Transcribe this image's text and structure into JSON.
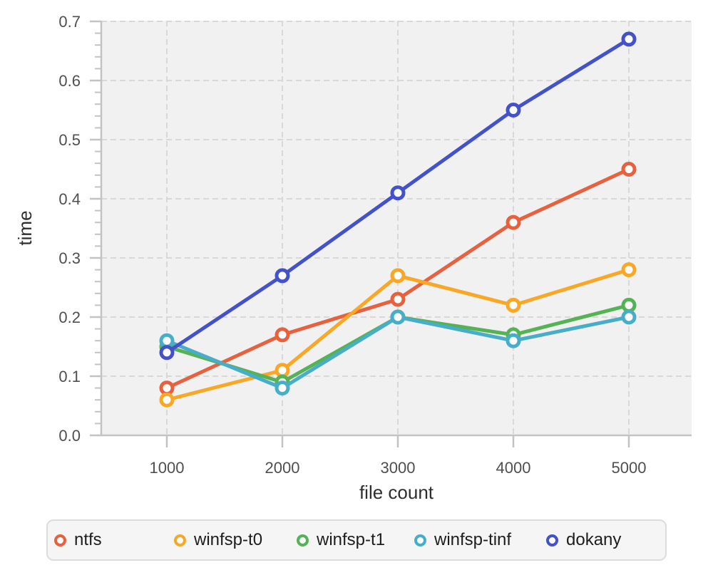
{
  "chart_data": {
    "type": "line",
    "title": "",
    "xlabel": "file count",
    "ylabel": "time",
    "x": [
      1000,
      2000,
      3000,
      4000,
      5000
    ],
    "xtick_labels": [
      "1000",
      "2000",
      "3000",
      "4000",
      "5000"
    ],
    "ytick_labels": [
      "0.0",
      "0.1",
      "0.2",
      "0.3",
      "0.4",
      "0.5",
      "0.6",
      "0.7"
    ],
    "yticks": [
      0.0,
      0.1,
      0.2,
      0.3,
      0.4,
      0.5,
      0.6,
      0.7
    ],
    "y_minor_step": 0.02,
    "xlim": [
      450,
      5550
    ],
    "ylim": [
      0,
      0.7
    ],
    "grid": "dashed",
    "marker": "open-circle",
    "legend_position": "bottom",
    "series": [
      {
        "name": "ntfs",
        "color": "#E7613E",
        "values": [
          0.08,
          0.17,
          0.23,
          0.36,
          0.45
        ]
      },
      {
        "name": "winfsp-t0",
        "color": "#F8A826",
        "values": [
          0.06,
          0.11,
          0.27,
          0.22,
          0.28
        ]
      },
      {
        "name": "winfsp-t1",
        "color": "#55B255",
        "values": [
          0.15,
          0.09,
          0.2,
          0.17,
          0.22
        ]
      },
      {
        "name": "winfsp-tinf",
        "color": "#47ADC9",
        "values": [
          0.16,
          0.08,
          0.2,
          0.16,
          0.2
        ]
      },
      {
        "name": "dokany",
        "color": "#4352C9",
        "values": [
          0.14,
          0.27,
          0.41,
          0.55,
          0.67
        ]
      }
    ],
    "styles": {
      "plot_bg": "#f1f1f1",
      "grid_color": "#d8d8d8",
      "axis_color": "#c3c3c3",
      "tick_label_color": "#4f4f4f",
      "axis_title_color": "#2e2e2e",
      "legend_bg": "#f5f5f5",
      "legend_border": "#dcdcdc",
      "legend_text": "#1d1d1f"
    }
  }
}
